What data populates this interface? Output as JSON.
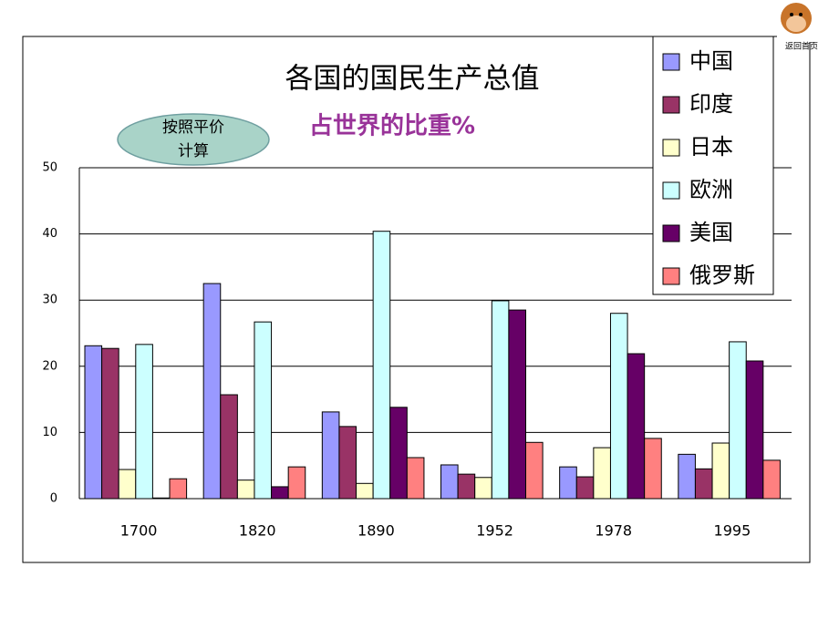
{
  "nav": {
    "label": "返回首页"
  },
  "chart_data": {
    "type": "bar",
    "title": "各国的国民生产总值",
    "subtitle": "占世界的比重%",
    "annotation": [
      "按照平价",
      "计算"
    ],
    "categories": [
      "1700",
      "1820",
      "1890",
      "1952",
      "1978",
      "1995"
    ],
    "series": [
      {
        "name": "中国",
        "color": "#9999ff",
        "values": [
          23.1,
          32.5,
          13.1,
          5.1,
          4.8,
          6.7
        ]
      },
      {
        "name": "印度",
        "color": "#993366",
        "values": [
          22.7,
          15.7,
          10.9,
          3.7,
          3.3,
          4.5
        ]
      },
      {
        "name": "日本",
        "color": "#ffffcc",
        "values": [
          4.4,
          2.8,
          2.3,
          3.2,
          7.7,
          8.4
        ]
      },
      {
        "name": "欧洲",
        "color": "#ccffff",
        "values": [
          23.3,
          26.7,
          40.4,
          29.9,
          28.0,
          23.7
        ]
      },
      {
        "name": "美国",
        "color": "#660066",
        "values": [
          0.1,
          1.8,
          13.8,
          28.5,
          21.9,
          20.8
        ]
      },
      {
        "name": "俄罗斯",
        "color": "#ff8080",
        "values": [
          3.0,
          4.8,
          6.2,
          8.5,
          9.1,
          5.8
        ]
      }
    ],
    "ylim": [
      0,
      50
    ],
    "yticks": [
      0,
      10,
      20,
      30,
      40,
      50
    ],
    "grid": true,
    "legend": "top-right"
  }
}
